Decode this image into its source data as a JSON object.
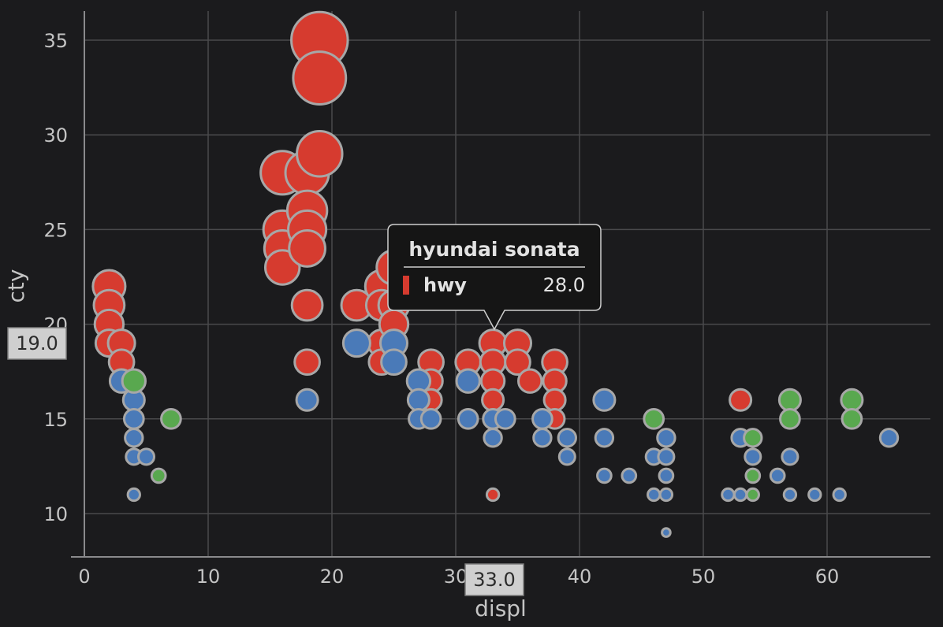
{
  "chart_data": {
    "type": "scatter",
    "x_label": "displ",
    "y_label": "cty",
    "xlim": [
      -1,
      68
    ],
    "ylim": [
      8,
      36.5
    ],
    "x_ticks": [
      0,
      10,
      20,
      30,
      40,
      50,
      60
    ],
    "y_ticks": [
      10,
      15,
      20,
      25,
      30,
      35
    ],
    "grid": true,
    "colors": {
      "red": "#d63b2f",
      "blue": "#4a7ab8",
      "green": "#59a84f",
      "stroke": "#a7a7a7",
      "background": "#1b1b1d"
    },
    "series": [
      {
        "name": "hwy",
        "color": "red",
        "points": [
          {
            "x": 2,
            "y": 22
          },
          {
            "x": 2,
            "y": 21
          },
          {
            "x": 2,
            "y": 20
          },
          {
            "x": 2,
            "y": 19
          },
          {
            "x": 3,
            "y": 19
          },
          {
            "x": 3,
            "y": 18
          },
          {
            "x": 16,
            "y": 28
          },
          {
            "x": 16,
            "y": 25
          },
          {
            "x": 16,
            "y": 24
          },
          {
            "x": 16,
            "y": 23
          },
          {
            "x": 18,
            "y": 28
          },
          {
            "x": 18,
            "y": 26
          },
          {
            "x": 18,
            "y": 25
          },
          {
            "x": 18,
            "y": 24
          },
          {
            "x": 18,
            "y": 21
          },
          {
            "x": 18,
            "y": 18
          },
          {
            "x": 19,
            "y": 35
          },
          {
            "x": 19,
            "y": 33
          },
          {
            "x": 19,
            "y": 29
          },
          {
            "x": 22,
            "y": 21
          },
          {
            "x": 24,
            "y": 22
          },
          {
            "x": 24,
            "y": 21
          },
          {
            "x": 24,
            "y": 19
          },
          {
            "x": 24,
            "y": 18
          },
          {
            "x": 25,
            "y": 23
          },
          {
            "x": 25,
            "y": 21
          },
          {
            "x": 25,
            "y": 20
          },
          {
            "x": 28,
            "y": 18
          },
          {
            "x": 28,
            "y": 17
          },
          {
            "x": 28,
            "y": 16
          },
          {
            "x": 31,
            "y": 18
          },
          {
            "x": 33,
            "y": 19
          },
          {
            "x": 33,
            "y": 18
          },
          {
            "x": 33,
            "y": 17
          },
          {
            "x": 33,
            "y": 16
          },
          {
            "x": 33,
            "y": 11
          },
          {
            "x": 35,
            "y": 19
          },
          {
            "x": 35,
            "y": 18
          },
          {
            "x": 36,
            "y": 17
          },
          {
            "x": 38,
            "y": 18
          },
          {
            "x": 38,
            "y": 17
          },
          {
            "x": 38,
            "y": 16
          },
          {
            "x": 38,
            "y": 15
          },
          {
            "x": 53,
            "y": 16
          }
        ]
      },
      {
        "name": "blue",
        "color": "blue",
        "points": [
          {
            "x": 3,
            "y": 17
          },
          {
            "x": 4,
            "y": 16
          },
          {
            "x": 4,
            "y": 15
          },
          {
            "x": 4,
            "y": 14
          },
          {
            "x": 4,
            "y": 13
          },
          {
            "x": 4,
            "y": 11
          },
          {
            "x": 5,
            "y": 13
          },
          {
            "x": 18,
            "y": 16
          },
          {
            "x": 22,
            "y": 19
          },
          {
            "x": 25,
            "y": 19
          },
          {
            "x": 25,
            "y": 18
          },
          {
            "x": 27,
            "y": 17
          },
          {
            "x": 27,
            "y": 16
          },
          {
            "x": 27,
            "y": 15
          },
          {
            "x": 28,
            "y": 15
          },
          {
            "x": 31,
            "y": 17
          },
          {
            "x": 31,
            "y": 15
          },
          {
            "x": 33,
            "y": 15
          },
          {
            "x": 33,
            "y": 14
          },
          {
            "x": 34,
            "y": 15
          },
          {
            "x": 37,
            "y": 15
          },
          {
            "x": 37,
            "y": 14
          },
          {
            "x": 39,
            "y": 14
          },
          {
            "x": 39,
            "y": 13
          },
          {
            "x": 42,
            "y": 16
          },
          {
            "x": 42,
            "y": 14
          },
          {
            "x": 42,
            "y": 12
          },
          {
            "x": 44,
            "y": 12
          },
          {
            "x": 46,
            "y": 13
          },
          {
            "x": 46,
            "y": 11
          },
          {
            "x": 47,
            "y": 14
          },
          {
            "x": 47,
            "y": 13
          },
          {
            "x": 47,
            "y": 12
          },
          {
            "x": 47,
            "y": 11
          },
          {
            "x": 47,
            "y": 9
          },
          {
            "x": 52,
            "y": 11
          },
          {
            "x": 53,
            "y": 14
          },
          {
            "x": 53,
            "y": 11
          },
          {
            "x": 54,
            "y": 13
          },
          {
            "x": 56,
            "y": 12
          },
          {
            "x": 57,
            "y": 13
          },
          {
            "x": 57,
            "y": 11
          },
          {
            "x": 59,
            "y": 11
          },
          {
            "x": 61,
            "y": 11
          },
          {
            "x": 65,
            "y": 14
          }
        ]
      },
      {
        "name": "green",
        "color": "green",
        "points": [
          {
            "x": 4,
            "y": 17
          },
          {
            "x": 6,
            "y": 12
          },
          {
            "x": 7,
            "y": 15
          },
          {
            "x": 46,
            "y": 15
          },
          {
            "x": 54,
            "y": 14
          },
          {
            "x": 54,
            "y": 12
          },
          {
            "x": 54,
            "y": 11
          },
          {
            "x": 57,
            "y": 16
          },
          {
            "x": 57,
            "y": 15
          },
          {
            "x": 62,
            "y": 16
          },
          {
            "x": 62,
            "y": 15
          }
        ]
      }
    ],
    "hover": {
      "x": 33,
      "y": 19,
      "x_readout": "33.0",
      "y_readout": "19.0",
      "tooltip_title": "hyundai sonata",
      "tooltip_series": "hwy",
      "tooltip_value": "28.0"
    }
  }
}
